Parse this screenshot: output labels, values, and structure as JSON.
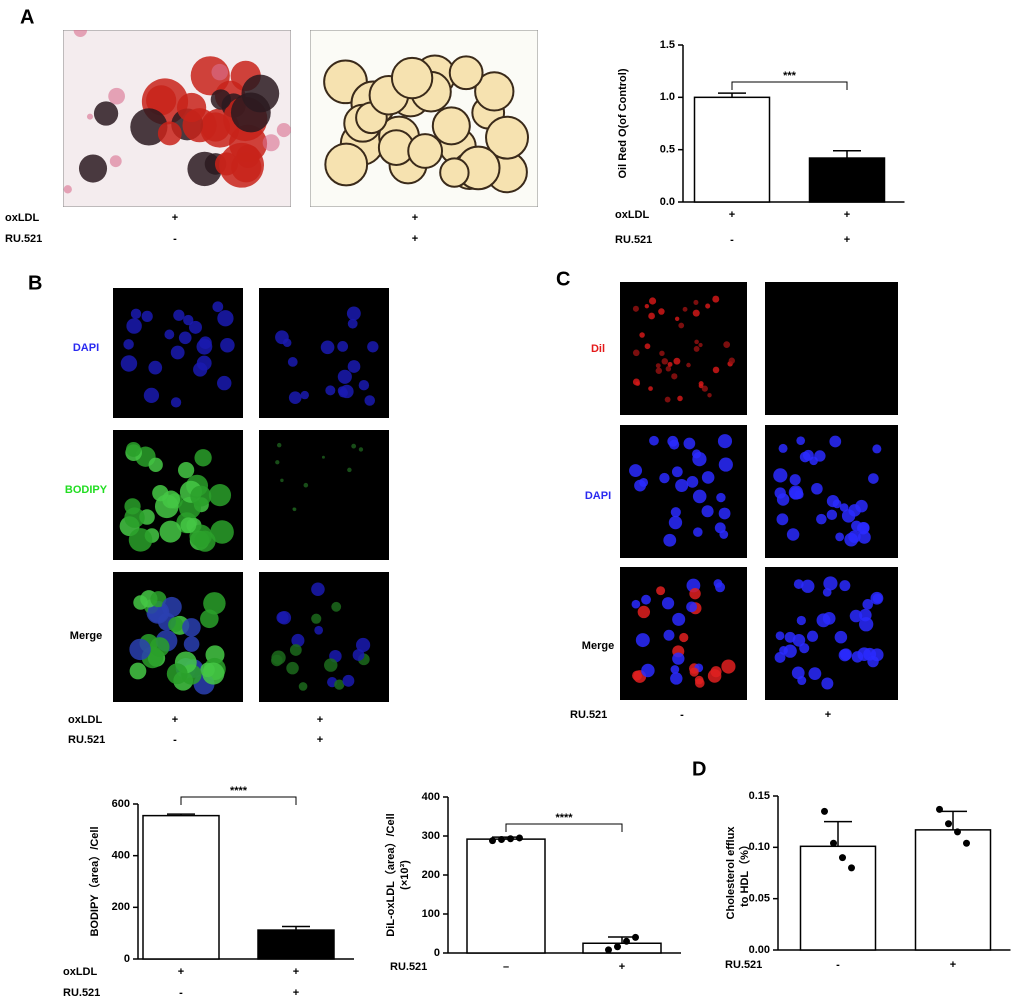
{
  "panel_a": {
    "label": "A",
    "conditions": [
      {
        "name": "oxLDL",
        "values": [
          "+",
          "+"
        ]
      },
      {
        "name": "RU.521",
        "values": [
          "-",
          "+"
        ]
      }
    ]
  },
  "panel_b": {
    "label": "B",
    "rows": [
      "DAPI",
      "BODIPY",
      "Merge"
    ],
    "conditions": [
      {
        "name": "oxLDL",
        "values": [
          "+",
          "+"
        ]
      },
      {
        "name": "RU.521",
        "values": [
          "-",
          "+"
        ]
      }
    ]
  },
  "panel_c": {
    "label": "C",
    "rows": [
      "Dil",
      "DAPI",
      "Merge"
    ],
    "conditions": [
      {
        "name": "RU.521",
        "values": [
          "-",
          "+"
        ]
      }
    ]
  },
  "panel_d": {
    "label": "D"
  },
  "chart_data": [
    {
      "type": "bar",
      "ylabel": [
        "Oil Red O(of Control)"
      ],
      "values": [
        1.0,
        0.42
      ],
      "errors": [
        0.04,
        0.07
      ],
      "colors": [
        "#ffffff",
        "#000000"
      ],
      "ylim": [
        0,
        1.5
      ],
      "yticks": [
        {
          "value": 0,
          "label": "0.0"
        },
        {
          "value": 0.5,
          "label": "0.5"
        },
        {
          "value": 1,
          "label": "1.0"
        },
        {
          "value": 1.5,
          "label": "1.5"
        }
      ],
      "significance": "***",
      "conditions": [
        {
          "name": "oxLDL",
          "values": [
            "+",
            "+"
          ]
        },
        {
          "name": "RU.521",
          "values": [
            "-",
            "+"
          ]
        }
      ]
    },
    {
      "type": "bar",
      "ylabel": [
        "BODIPY（area）/Cell"
      ],
      "values": [
        555,
        112
      ],
      "errors": [
        6,
        14
      ],
      "colors": [
        "#ffffff",
        "#000000"
      ],
      "ylim": [
        0,
        600
      ],
      "yticks": [
        0,
        200,
        400,
        600
      ],
      "significance": "****",
      "conditions": [
        {
          "name": "oxLDL",
          "values": [
            "+",
            "+"
          ]
        },
        {
          "name": "RU.521",
          "values": [
            "-",
            "+"
          ]
        }
      ]
    },
    {
      "type": "bar",
      "ylabel": [
        "DiL-oxLDL（area）/Cell",
        "(×10³)"
      ],
      "values": [
        292,
        25
      ],
      "errors": [
        5,
        16
      ],
      "colors": [
        "#ffffff",
        "#ffffff"
      ],
      "points": [
        [
          288,
          291,
          293,
          295
        ],
        [
          8,
          16,
          30,
          40
        ]
      ],
      "ylim": [
        0,
        400
      ],
      "yticks": [
        0,
        100,
        200,
        300,
        400
      ],
      "significance": "****",
      "conditions": [
        {
          "name": "RU.521",
          "values": [
            "–",
            "+"
          ]
        }
      ]
    },
    {
      "type": "bar",
      "ylabel": [
        "Cholesterol efflux",
        "to HDL（%）"
      ],
      "values": [
        0.101,
        0.117
      ],
      "errors": [
        0.024,
        0.018
      ],
      "colors": [
        "#ffffff",
        "#ffffff"
      ],
      "points": [
        [
          0.135,
          0.104,
          0.09,
          0.08
        ],
        [
          0.137,
          0.123,
          0.115,
          0.104
        ]
      ],
      "ylim": [
        0,
        0.15
      ],
      "yticks": [
        {
          "value": 0,
          "label": "0.00"
        },
        {
          "value": 0.05,
          "label": "0.05"
        },
        {
          "value": 0.1,
          "label": "0.10"
        },
        {
          "value": 0.15,
          "label": "0.15"
        }
      ],
      "conditions": [
        {
          "name": "RU.521",
          "values": [
            "-",
            "+"
          ]
        }
      ]
    }
  ]
}
